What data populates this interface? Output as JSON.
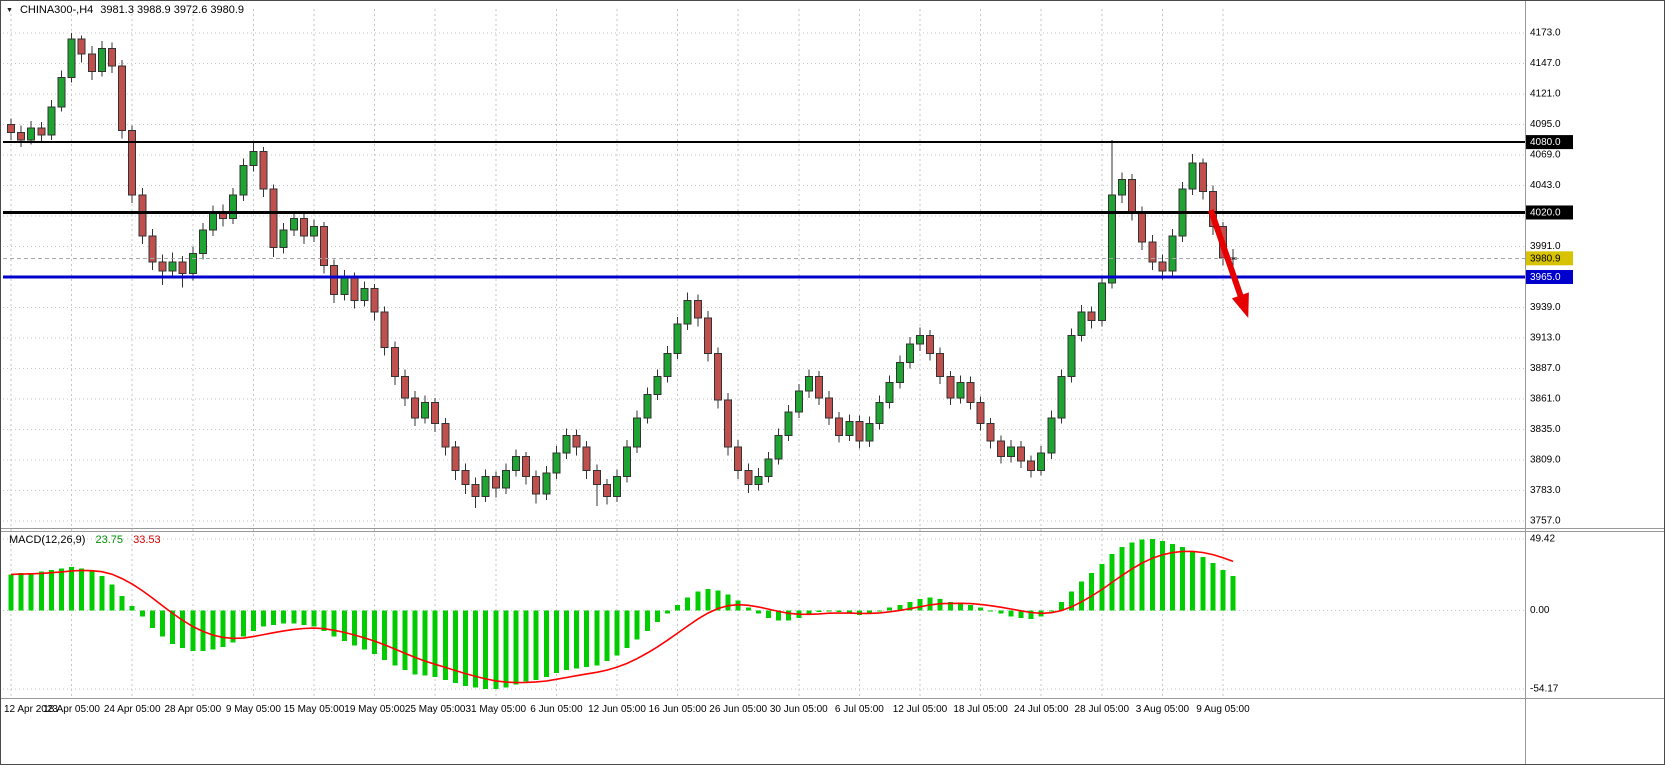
{
  "header": {
    "dropdown_glyph": "▼",
    "symbol_period": "CHINA300-,H4",
    "ohlc": "3981.3 3988.9 3972.6 3980.9"
  },
  "macd_panel": {
    "name": "MACD(12,26,9)",
    "value": "23.75",
    "signal": "33.53"
  },
  "colors": {
    "bull": "#1fa333",
    "bear": "#c0504d",
    "wick": "#333333",
    "grid": "#c6c6c6",
    "separator": "#9a9a9a",
    "axis_text": "#000000",
    "background": "#ffffff"
  },
  "chart_data": {
    "type": "candlestick",
    "symbol": "CHINA300-",
    "timeframe": "H4",
    "title": "CHINA300-,H4",
    "ohlc_display": {
      "open": 3981.3,
      "high": 3988.9,
      "low": 3972.6,
      "close": 3980.9
    },
    "price_axis": {
      "min": 3757.0,
      "max": 4173.0,
      "step": 26.0,
      "ticks": [
        4173.0,
        4147.0,
        4121.0,
        4095.0,
        4069.0,
        4043.0,
        4017.0,
        3991.0,
        3965.0,
        3939.0,
        3913.0,
        3887.0,
        3861.0,
        3835.0,
        3809.0,
        3783.0,
        3757.0
      ]
    },
    "time_axis": {
      "candles_per_label": 6,
      "labels": [
        "12 Apr 2023",
        "18 Apr 05:00",
        "24 Apr 05:00",
        "28 Apr 05:00",
        "9 May 05:00",
        "15 May 05:00",
        "19 May 05:00",
        "25 May 05:00",
        "31 May 05:00",
        "6 Jun 05:00",
        "12 Jun 05:00",
        "16 Jun 05:00",
        "26 Jun 05:00",
        "30 Jun 05:00",
        "6 Jul 05:00",
        "12 Jul 05:00",
        "18 Jul 05:00",
        "24 Jul 05:00",
        "28 Jul 05:00",
        "3 Aug 05:00",
        "9 Aug 05:00"
      ]
    },
    "candles": [
      [
        4095,
        4100,
        4082,
        4088
      ],
      [
        4088,
        4094,
        4076,
        4082
      ],
      [
        4082,
        4098,
        4078,
        4092
      ],
      [
        4092,
        4097,
        4080,
        4086
      ],
      [
        4086,
        4116,
        4082,
        4110
      ],
      [
        4110,
        4141,
        4106,
        4135
      ],
      [
        4135,
        4173,
        4131,
        4168
      ],
      [
        4168,
        4171,
        4148,
        4155
      ],
      [
        4155,
        4162,
        4133,
        4140
      ],
      [
        4140,
        4166,
        4136,
        4160
      ],
      [
        4160,
        4165,
        4139,
        4145
      ],
      [
        4145,
        4150,
        4083,
        4090
      ],
      [
        4090,
        4094,
        4028,
        4035
      ],
      [
        4035,
        4041,
        3993,
        4000
      ],
      [
        4000,
        4006,
        3971,
        3978
      ],
      [
        3978,
        3984,
        3958,
        3970
      ],
      [
        3970,
        3986,
        3964,
        3978
      ],
      [
        3978,
        3983,
        3956,
        3968
      ],
      [
        3968,
        3991,
        3962,
        3985
      ],
      [
        3985,
        4011,
        3980,
        4005
      ],
      [
        4005,
        4026,
        4000,
        4020
      ],
      [
        4020,
        4027,
        4008,
        4015
      ],
      [
        4015,
        4041,
        4010,
        4035
      ],
      [
        4035,
        4066,
        4030,
        4060
      ],
      [
        4060,
        4081,
        4055,
        4072
      ],
      [
        4072,
        4076,
        4033,
        4040
      ],
      [
        4040,
        4044,
        3982,
        3990
      ],
      [
        3990,
        4011,
        3985,
        4005
      ],
      [
        4005,
        4021,
        4000,
        4015
      ],
      [
        4015,
        4020,
        3993,
        4000
      ],
      [
        4000,
        4014,
        3995,
        4008
      ],
      [
        4008,
        4012,
        3968,
        3975
      ],
      [
        3975,
        3980,
        3943,
        3950
      ],
      [
        3950,
        3971,
        3945,
        3965
      ],
      [
        3965,
        3969,
        3938,
        3945
      ],
      [
        3945,
        3961,
        3940,
        3955
      ],
      [
        3955,
        3959,
        3928,
        3935
      ],
      [
        3935,
        3940,
        3898,
        3905
      ],
      [
        3905,
        3910,
        3873,
        3880
      ],
      [
        3880,
        3886,
        3855,
        3862
      ],
      [
        3862,
        3868,
        3838,
        3845
      ],
      [
        3845,
        3864,
        3840,
        3858
      ],
      [
        3858,
        3862,
        3833,
        3840
      ],
      [
        3840,
        3845,
        3813,
        3820
      ],
      [
        3820,
        3825,
        3792,
        3800
      ],
      [
        3800,
        3806,
        3780,
        3788
      ],
      [
        3788,
        3794,
        3768,
        3778
      ],
      [
        3778,
        3801,
        3773,
        3795
      ],
      [
        3795,
        3799,
        3777,
        3785
      ],
      [
        3785,
        3806,
        3780,
        3800
      ],
      [
        3800,
        3818,
        3795,
        3812
      ],
      [
        3812,
        3816,
        3788,
        3795
      ],
      [
        3795,
        3800,
        3772,
        3780
      ],
      [
        3780,
        3804,
        3775,
        3798
      ],
      [
        3798,
        3821,
        3793,
        3815
      ],
      [
        3815,
        3836,
        3810,
        3830
      ],
      [
        3830,
        3835,
        3813,
        3820
      ],
      [
        3820,
        3825,
        3793,
        3800
      ],
      [
        3800,
        3805,
        3770,
        3788
      ],
      [
        3788,
        3793,
        3771,
        3778
      ],
      [
        3778,
        3801,
        3773,
        3795
      ],
      [
        3795,
        3826,
        3790,
        3820
      ],
      [
        3820,
        3851,
        3815,
        3845
      ],
      [
        3845,
        3871,
        3840,
        3865
      ],
      [
        3865,
        3886,
        3860,
        3880
      ],
      [
        3880,
        3906,
        3875,
        3900
      ],
      [
        3900,
        3931,
        3895,
        3925
      ],
      [
        3925,
        3952,
        3920,
        3945
      ],
      [
        3945,
        3950,
        3923,
        3930
      ],
      [
        3930,
        3936,
        3893,
        3900
      ],
      [
        3900,
        3905,
        3853,
        3860
      ],
      [
        3860,
        3866,
        3813,
        3820
      ],
      [
        3820,
        3826,
        3793,
        3800
      ],
      [
        3800,
        3806,
        3781,
        3788
      ],
      [
        3788,
        3802,
        3783,
        3795
      ],
      [
        3795,
        3816,
        3790,
        3810
      ],
      [
        3810,
        3836,
        3805,
        3830
      ],
      [
        3830,
        3856,
        3825,
        3850
      ],
      [
        3850,
        3874,
        3845,
        3868
      ],
      [
        3868,
        3886,
        3862,
        3880
      ],
      [
        3880,
        3885,
        3856,
        3862
      ],
      [
        3862,
        3868,
        3839,
        3845
      ],
      [
        3845,
        3850,
        3824,
        3830
      ],
      [
        3830,
        3848,
        3825,
        3842
      ],
      [
        3842,
        3847,
        3819,
        3825
      ],
      [
        3825,
        3846,
        3820,
        3840
      ],
      [
        3840,
        3864,
        3835,
        3858
      ],
      [
        3858,
        3881,
        3853,
        3875
      ],
      [
        3875,
        3898,
        3870,
        3892
      ],
      [
        3892,
        3914,
        3887,
        3908
      ],
      [
        3908,
        3922,
        3902,
        3915
      ],
      [
        3915,
        3920,
        3894,
        3900
      ],
      [
        3900,
        3905,
        3874,
        3880
      ],
      [
        3880,
        3885,
        3856,
        3862
      ],
      [
        3862,
        3881,
        3857,
        3875
      ],
      [
        3875,
        3880,
        3852,
        3858
      ],
      [
        3858,
        3863,
        3834,
        3840
      ],
      [
        3840,
        3845,
        3819,
        3825
      ],
      [
        3825,
        3830,
        3806,
        3812
      ],
      [
        3812,
        3826,
        3807,
        3820
      ],
      [
        3820,
        3825,
        3802,
        3808
      ],
      [
        3808,
        3813,
        3794,
        3800
      ],
      [
        3800,
        3821,
        3796,
        3815
      ],
      [
        3815,
        3851,
        3810,
        3845
      ],
      [
        3845,
        3886,
        3840,
        3880
      ],
      [
        3880,
        3921,
        3875,
        3915
      ],
      [
        3915,
        3941,
        3910,
        3935
      ],
      [
        3935,
        3940,
        3921,
        3928
      ],
      [
        3928,
        3966,
        3923,
        3960
      ],
      [
        3960,
        4082,
        3955,
        4035
      ],
      [
        4035,
        4054,
        4028,
        4048
      ],
      [
        4048,
        4053,
        4013,
        4020
      ],
      [
        4020,
        4025,
        3988,
        3995
      ],
      [
        3995,
        4001,
        3971,
        3978
      ],
      [
        3978,
        3984,
        3963,
        3970
      ],
      [
        3970,
        4006,
        3965,
        4000
      ],
      [
        4000,
        4046,
        3995,
        4040
      ],
      [
        4040,
        4070,
        4035,
        4062
      ],
      [
        4062,
        4066,
        4031,
        4038
      ],
      [
        4038,
        4043,
        4001,
        4008
      ],
      [
        4008,
        4012,
        3975,
        3981.3
      ],
      [
        3981.3,
        3988.9,
        3972.6,
        3980.9
      ]
    ],
    "lines": [
      {
        "name": "resistance-4080",
        "price": 4080.0,
        "color": "#000000",
        "width": 2,
        "style": "solid",
        "label": "4080.0",
        "label_bg": "#000000",
        "label_fg": "#ffffff"
      },
      {
        "name": "resistance-4020",
        "price": 4020.0,
        "color": "#000000",
        "width": 3,
        "style": "solid",
        "label": "4020.0",
        "label_bg": "#000000",
        "label_fg": "#ffffff"
      },
      {
        "name": "support-3965",
        "price": 3965.0,
        "color": "#0000cc",
        "width": 3,
        "style": "solid",
        "label": "3965.0",
        "label_bg": "#0000cc",
        "label_fg": "#ffffff"
      },
      {
        "name": "bid-price-line",
        "price": 3980.9,
        "color": "#a8a8a8",
        "width": 1,
        "style": "dashed",
        "label": "3980.9",
        "label_bg": "#d8c300",
        "label_fg": "#000000"
      }
    ],
    "arrow": {
      "from_index": 118.8,
      "from_price": 4022,
      "to_index": 122.5,
      "to_price": 3930,
      "color": "#e60000"
    },
    "indicator": {
      "type": "MACD",
      "params": [
        12,
        26,
        9
      ],
      "current_value": 23.75,
      "current_signal": 33.53,
      "axis_ticks": [
        49.42,
        0.0,
        -54.17
      ],
      "hist_color": "#00cc00",
      "signal_color": "#ff0000",
      "signal_period": 9,
      "values": [
        25,
        26,
        26,
        27,
        28,
        29,
        30,
        29,
        27,
        24,
        18,
        10,
        3,
        -4,
        -12,
        -18,
        -23,
        -26,
        -28,
        -28,
        -27,
        -25,
        -22,
        -18,
        -14,
        -11,
        -10,
        -9,
        -9,
        -10,
        -11,
        -14,
        -18,
        -21,
        -24,
        -27,
        -30,
        -34,
        -38,
        -41,
        -44,
        -45,
        -46,
        -48,
        -50,
        -52,
        -53,
        -54.17,
        -54,
        -53,
        -51,
        -49,
        -48,
        -46,
        -43,
        -41,
        -40,
        -39,
        -38,
        -35,
        -31,
        -26,
        -20,
        -14,
        -8,
        -2,
        4,
        9,
        13,
        15,
        14,
        11,
        7,
        2,
        -2,
        -5,
        -7,
        -7,
        -5,
        -3,
        -1,
        0,
        -1,
        -2,
        -3,
        -2,
        0,
        2,
        4,
        6,
        8,
        9,
        8,
        6,
        5,
        4,
        2,
        0,
        -2,
        -4,
        -5,
        -6,
        -4,
        0,
        6,
        13,
        20,
        26,
        32,
        39,
        44,
        47,
        49,
        49.42,
        48,
        46,
        44,
        41,
        37,
        33,
        28,
        23.75
      ]
    }
  }
}
